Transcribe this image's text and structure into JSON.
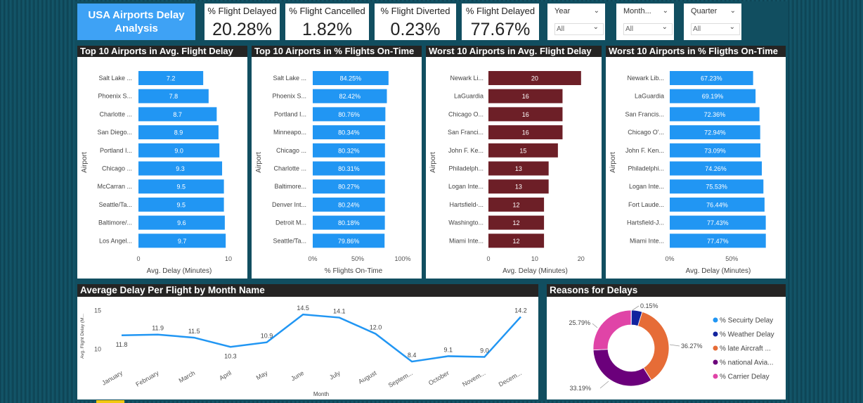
{
  "header": {
    "title": "USA Airports Delay Analysis",
    "kpis": [
      {
        "label": "% Flight Delayed",
        "value": "20.28%"
      },
      {
        "label": "% Flight Cancelled",
        "value": "1.82%"
      },
      {
        "label": "% Flight Diverted",
        "value": "0.23%"
      },
      {
        "label": "% Flight Delayed",
        "value": "77.67%"
      }
    ],
    "slicers": [
      {
        "label": "Year",
        "value": "All"
      },
      {
        "label": "Month...",
        "value": "All"
      },
      {
        "label": "Quarter",
        "value": "All"
      }
    ]
  },
  "colors": {
    "blue": "#2196f3",
    "maroon": "#6d1f27",
    "title_bar": "#252423",
    "title_box": "#3ea2f5",
    "donut": [
      "#2196f3",
      "#12239e",
      "#e66c37",
      "#6b007b",
      "#e044a7"
    ]
  },
  "chart_data": [
    {
      "type": "bar",
      "orientation": "horizontal",
      "title": "Top 10 Airports in Avg. Flight Delay",
      "ylabel": "Airport",
      "xlabel": "Avg. Delay (Minutes)",
      "categories": [
        "Salt Lake ...",
        "Phoenix S...",
        "Charlotte ...",
        "San Diego...",
        "Portland I...",
        "Chicago ...",
        "McCarran ...",
        "Seattle/Ta...",
        "Baltimore/...",
        "Los Angel..."
      ],
      "values": [
        7.2,
        7.8,
        8.7,
        8.9,
        9.0,
        9.3,
        9.5,
        9.5,
        9.6,
        9.7
      ],
      "labels": [
        "7.2",
        "7.8",
        "8.7",
        "8.9",
        "9.0",
        "9.3",
        "9.5",
        "9.5",
        "9.6",
        "9.7"
      ],
      "xlim": [
        0,
        10
      ],
      "xticks": [
        "0",
        "10"
      ],
      "color": "#2196f3"
    },
    {
      "type": "bar",
      "orientation": "horizontal",
      "title": "Top 10 Airports in % Flights On-Time",
      "ylabel": "Airport",
      "xlabel": "% Flights On-Time",
      "categories": [
        "Salt Lake ...",
        "Phoenix S...",
        "Portland I...",
        "Minneapo...",
        "Chicago ...",
        "Charlotte ...",
        "Baltimore...",
        "Denver Int...",
        "Detroit M...",
        "Seattle/Ta..."
      ],
      "values": [
        84.25,
        82.42,
        80.76,
        80.34,
        80.32,
        80.31,
        80.27,
        80.24,
        80.18,
        79.86
      ],
      "labels": [
        "84.25%",
        "82.42%",
        "80.76%",
        "80.34%",
        "80.32%",
        "80.31%",
        "80.27%",
        "80.24%",
        "80.18%",
        "79.86%"
      ],
      "xlim": [
        0,
        100
      ],
      "xticks": [
        "0%",
        "50%",
        "100%"
      ],
      "color": "#2196f3"
    },
    {
      "type": "bar",
      "orientation": "horizontal",
      "title": "Worst 10 Airports in Avg. Flight Delay",
      "ylabel": "Airport",
      "xlabel": "Avg. Delay (Minutes)",
      "categories": [
        "Newark Li...",
        "LaGuardia",
        "Chicago O...",
        "San Franci...",
        "John F. Ke...",
        "Philadelph...",
        "Logan Inte...",
        "Hartsfield-...",
        "Washingto...",
        "Miami Inte..."
      ],
      "values": [
        20,
        16,
        16,
        16,
        15,
        13,
        13,
        12,
        12,
        12
      ],
      "labels": [
        "20",
        "16",
        "16",
        "16",
        "15",
        "13",
        "13",
        "12",
        "12",
        "12"
      ],
      "xlim": [
        0,
        22
      ],
      "xticks": [
        "0",
        "10",
        "20"
      ],
      "color": "#6d1f27"
    },
    {
      "type": "bar",
      "orientation": "horizontal",
      "title": "Worst 10 Airports in % Fligths On-Time",
      "ylabel": "Airport",
      "xlabel": "Avg. Delay (Minutes)",
      "categories": [
        "Newark Lib...",
        "LaGuardia",
        "San Francis...",
        "Chicago O'...",
        "John F. Ken...",
        "Philadelphi...",
        "Logan Inte...",
        "Fort Laude...",
        "Hartsfield-J...",
        "Miami Inte..."
      ],
      "values": [
        67.23,
        69.19,
        72.36,
        72.94,
        73.09,
        74.26,
        75.53,
        76.44,
        77.43,
        77.47
      ],
      "labels": [
        "67.23%",
        "69.19%",
        "72.36%",
        "72.94%",
        "73.09%",
        "74.26%",
        "75.53%",
        "76.44%",
        "77.43%",
        "77.47%"
      ],
      "xlim": [
        0,
        85
      ],
      "xticks": [
        "0%",
        "50%"
      ],
      "color": "#2196f3"
    },
    {
      "type": "line",
      "title": "Average Delay Per Flight by Month Name",
      "xlabel": "Month",
      "ylabel": "Avg. Flight Delay (M...",
      "categories": [
        "January",
        "February",
        "March",
        "April",
        "May",
        "June",
        "July",
        "August",
        "Septem...",
        "October",
        "Novem...",
        "Decem..."
      ],
      "values": [
        11.8,
        11.9,
        11.5,
        10.3,
        10.9,
        14.5,
        14.1,
        12.0,
        8.4,
        9.1,
        9.0,
        14.2
      ],
      "labels": [
        "11.8",
        "11.9",
        "11.5",
        "10.3",
        "10.9",
        "14.5",
        "14.1",
        "12.0",
        "8.4",
        "9.1",
        "9.0",
        "14.2"
      ],
      "ylim": [
        7.5,
        15.7
      ],
      "yticks": [
        "10",
        "15"
      ],
      "color": "#2196f3"
    },
    {
      "type": "pie",
      "donut": true,
      "title": "Reasons for Delays",
      "categories": [
        "% Secuirty Delay",
        "% Weather Delay",
        "% late Aircraft ...",
        "% national Avia...",
        "% Carrier Delay"
      ],
      "values": [
        0.15,
        4.6,
        36.27,
        33.19,
        25.79
      ],
      "labels": [
        "0.15%",
        "",
        "36.27%",
        "33.19%",
        "25.79%"
      ]
    }
  ]
}
